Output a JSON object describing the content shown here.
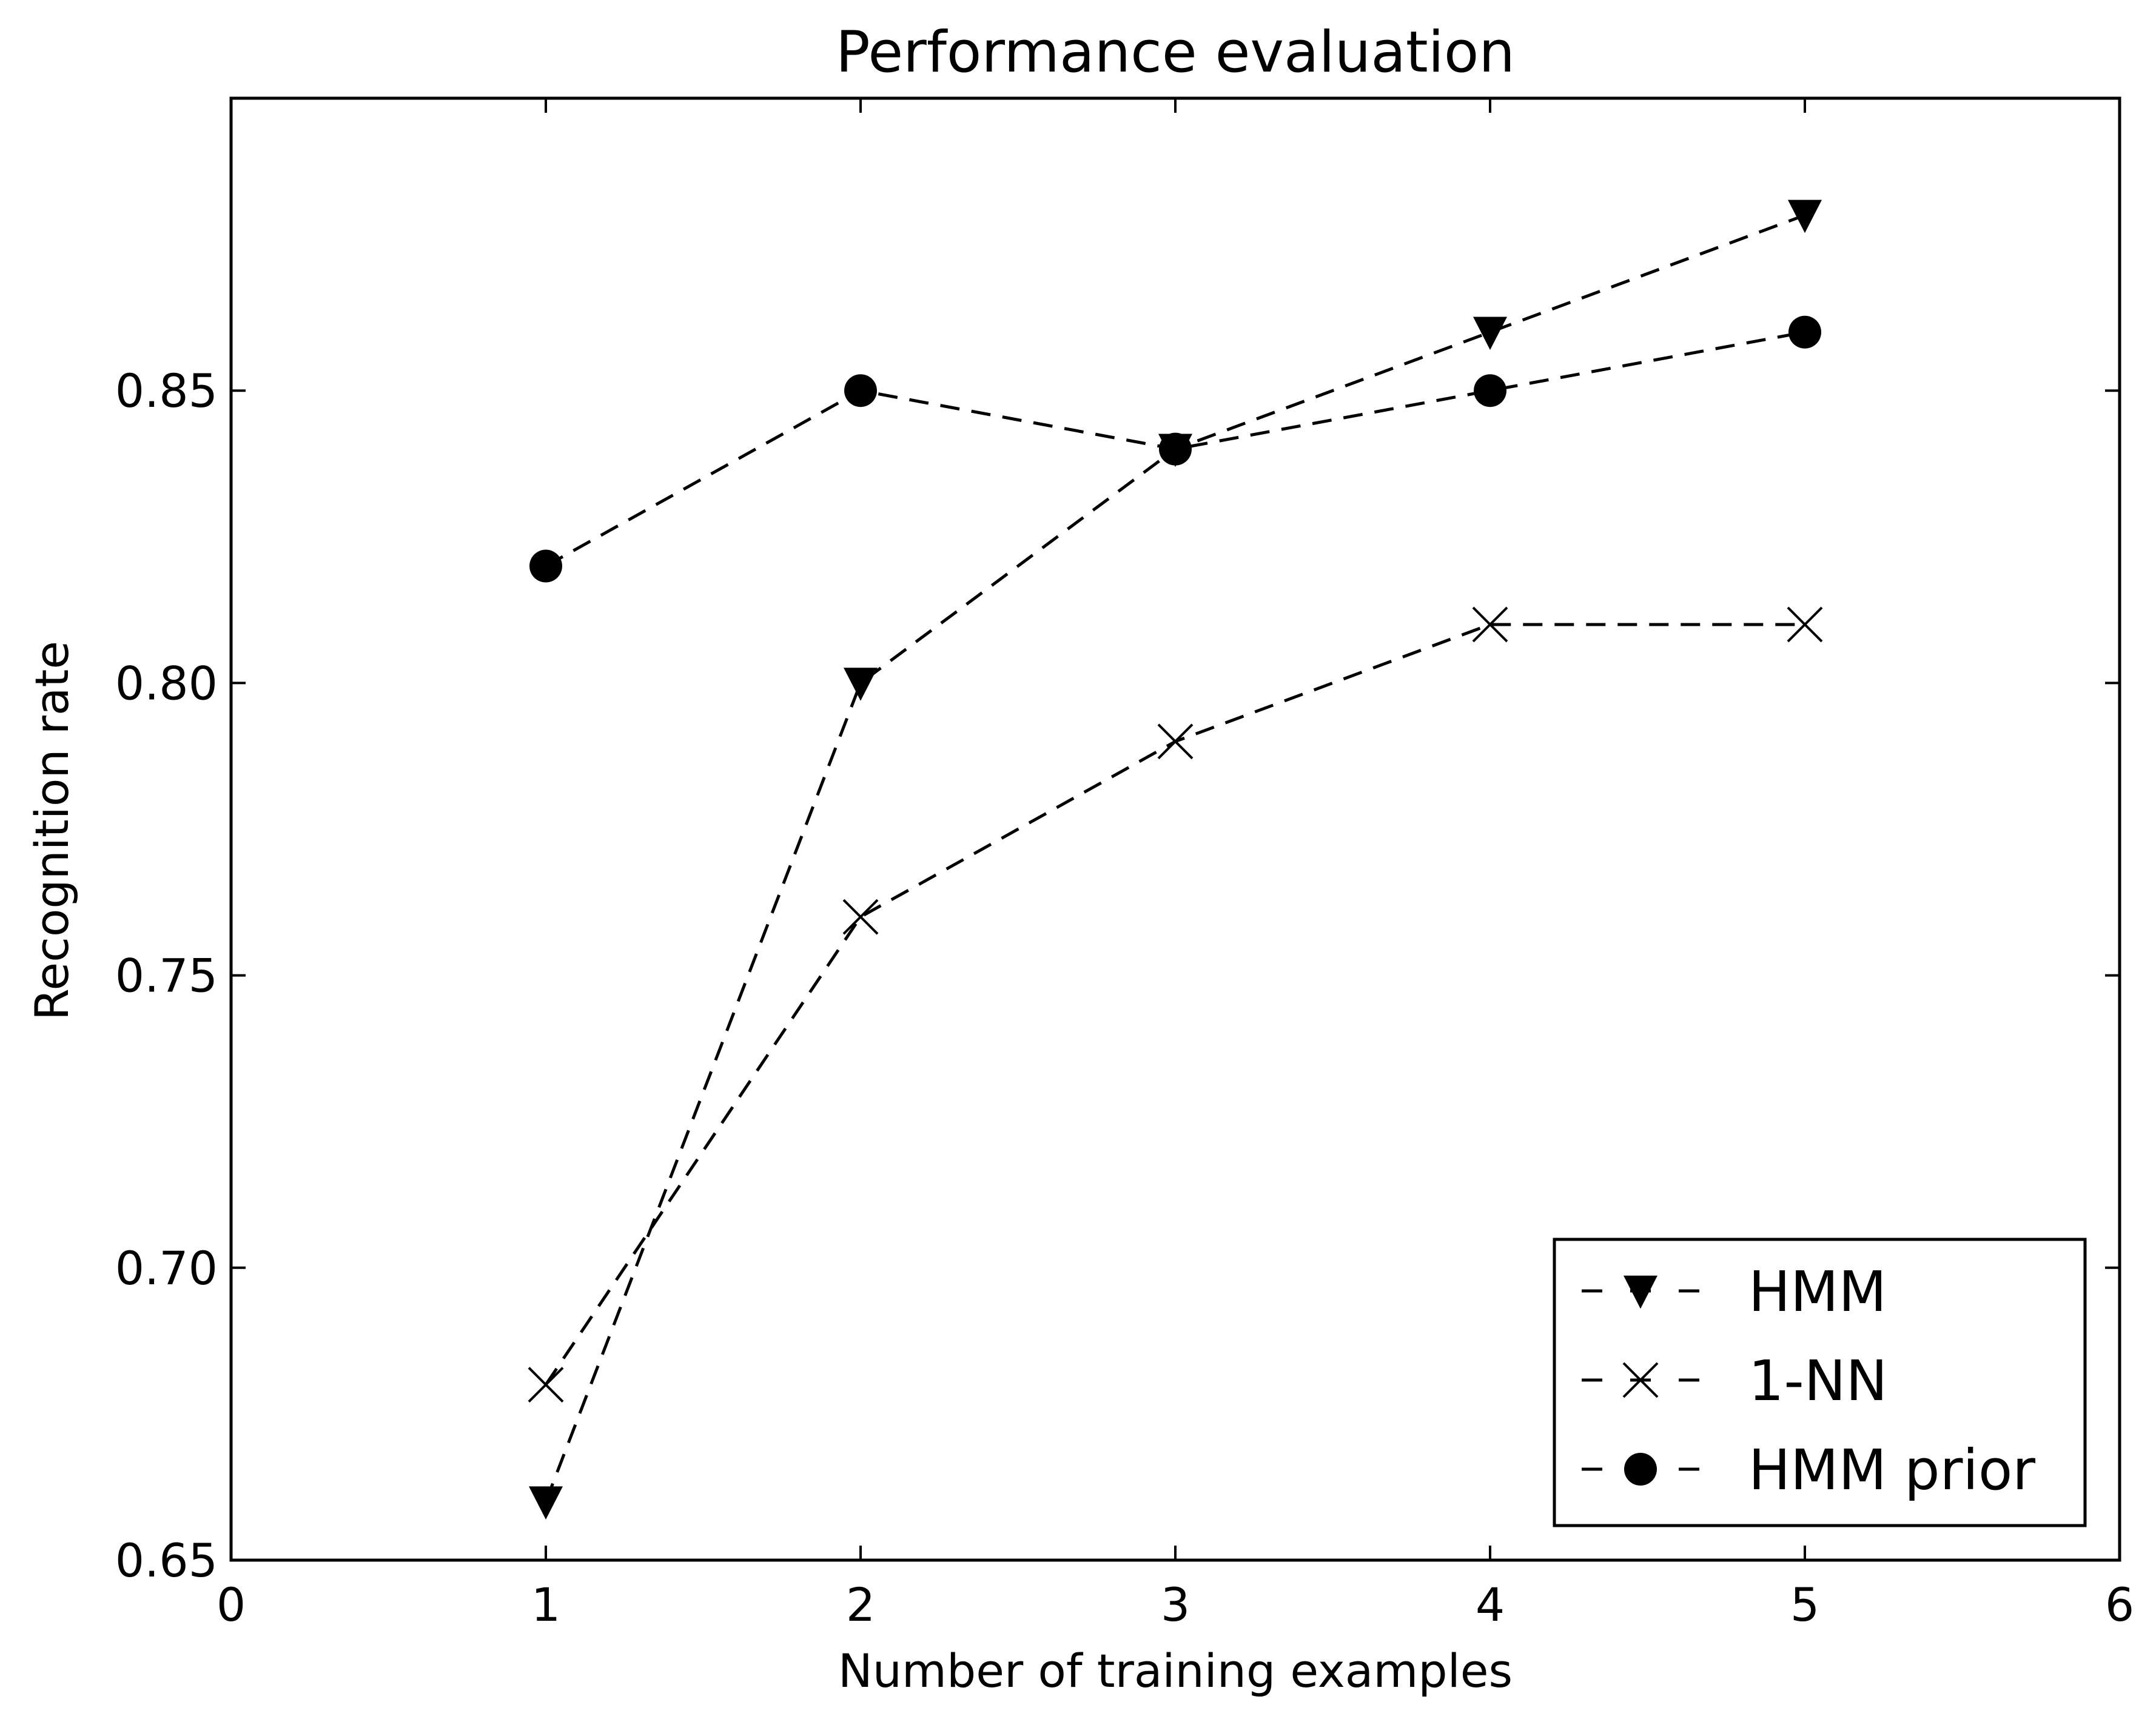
{
  "chart_data": {
    "type": "line",
    "title": "Performance evaluation",
    "xlabel": "Number of training examples",
    "ylabel": "Recognition rate",
    "xlim": [
      0,
      6
    ],
    "ylim": [
      0.65,
      0.9
    ],
    "x_ticks": [
      0,
      1,
      2,
      3,
      4,
      5,
      6
    ],
    "x_tick_labels": [
      "0",
      "1",
      "2",
      "3",
      "4",
      "5",
      "6"
    ],
    "y_ticks": [
      0.65,
      0.7,
      0.75,
      0.8,
      0.85
    ],
    "y_tick_labels": [
      "0.65",
      "0.70",
      "0.75",
      "0.80",
      "0.85"
    ],
    "grid": false,
    "legend_position": "lower-right",
    "x": [
      1,
      2,
      3,
      4,
      5
    ],
    "series": [
      {
        "name": "HMM",
        "marker": "triangle-down",
        "line_style": "dashed",
        "color": "#000000",
        "values": [
          0.66,
          0.8,
          0.84,
          0.86,
          0.88
        ]
      },
      {
        "name": "1-NN",
        "marker": "x",
        "line_style": "dashed",
        "color": "#000000",
        "values": [
          0.68,
          0.76,
          0.79,
          0.81,
          0.81
        ]
      },
      {
        "name": "HMM prior",
        "marker": "circle",
        "line_style": "dashed",
        "color": "#000000",
        "values": [
          0.82,
          0.85,
          0.84,
          0.85,
          0.86
        ]
      }
    ]
  }
}
